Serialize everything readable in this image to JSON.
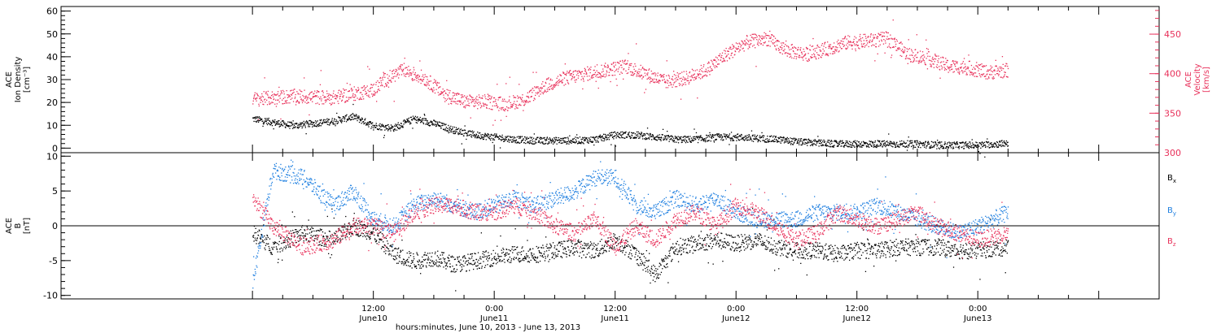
{
  "chart_data": [
    {
      "type": "scatter",
      "x_axis": {
        "label": "hours:minutes, June 10, 2013 - June 13, 2013",
        "range_hours": [
          -19,
          90
        ],
        "ticks": [
          {
            "h": 12,
            "time": "12:00",
            "day": "June10"
          },
          {
            "h": 24,
            "time": "0:00",
            "day": "June11"
          },
          {
            "h": 36,
            "time": "12:00",
            "day": "June11"
          },
          {
            "h": 48,
            "time": "0:00",
            "day": "June12"
          },
          {
            "h": 60,
            "time": "12:00",
            "day": "June12"
          },
          {
            "h": 72,
            "time": "0:00",
            "day": "June13"
          }
        ]
      },
      "left_axis": {
        "label_lines": [
          "ACE",
          "Ion Density",
          "[cm⁻³]"
        ],
        "range": [
          -2,
          62
        ],
        "ticks": [
          0,
          10,
          20,
          30,
          40,
          50,
          60
        ],
        "color": "#000000"
      },
      "right_axis": {
        "label_lines": [
          "ACE",
          "Velocity",
          "[km/s]"
        ],
        "range": [
          300,
          485
        ],
        "ticks": [
          300,
          350,
          400,
          450
        ],
        "color": "#e8305a"
      },
      "series": [
        {
          "key": "density",
          "axis": "left",
          "color": "#000000",
          "x": [
            0,
            4,
            8,
            10,
            12,
            14,
            16,
            18,
            20,
            22,
            24,
            26,
            28,
            30,
            32,
            34,
            36,
            38,
            40,
            42,
            44,
            46,
            48,
            50,
            52,
            54,
            56,
            58,
            60,
            62,
            64,
            66,
            68,
            70,
            72,
            74,
            75
          ],
          "y": [
            13,
            10,
            12,
            14,
            10,
            9,
            13,
            11,
            8,
            6,
            5,
            4,
            3.5,
            3.5,
            3.5,
            4,
            6,
            6,
            5,
            4,
            4,
            5,
            5,
            4.5,
            4,
            3,
            2.5,
            2,
            2,
            2,
            2,
            2,
            1.5,
            1.5,
            1.5,
            2,
            2.5
          ]
        },
        {
          "key": "velocity",
          "axis": "right",
          "color": "#e8305a",
          "x": [
            0,
            4,
            8,
            10,
            12,
            13,
            15,
            17,
            19,
            21,
            23,
            25,
            27,
            29,
            31,
            33,
            35,
            37,
            39,
            41,
            43,
            45,
            47,
            49,
            51,
            53,
            55,
            57,
            59,
            61,
            63,
            65,
            67,
            69,
            71,
            73,
            75
          ],
          "y": [
            368,
            372,
            370,
            375,
            380,
            392,
            405,
            395,
            375,
            365,
            365,
            362,
            368,
            385,
            395,
            400,
            405,
            410,
            400,
            390,
            395,
            405,
            425,
            440,
            445,
            430,
            425,
            432,
            440,
            442,
            445,
            425,
            420,
            410,
            408,
            402,
            405
          ]
        }
      ]
    },
    {
      "type": "scatter",
      "x_axis": {
        "range_hours": [
          -19,
          90
        ]
      },
      "left_axis": {
        "label_lines": [
          "ACE",
          "B",
          "[nT]"
        ],
        "range": [
          -10.5,
          10.5
        ],
        "ticks": [
          -10,
          -5,
          0,
          5,
          10
        ]
      },
      "zero_line": true,
      "series": [
        {
          "key": "bx",
          "name": "Bx",
          "color": "#000000",
          "x": [
            0,
            2,
            5,
            8,
            10,
            12,
            14,
            16,
            18,
            20,
            22,
            24,
            26,
            28,
            30,
            32,
            34,
            36,
            38,
            40,
            42,
            44,
            46,
            48,
            50,
            52,
            54,
            56,
            58,
            60,
            62,
            64,
            66,
            68,
            70,
            72,
            75
          ],
          "y": [
            -1,
            -3,
            -1,
            -2,
            0,
            -1,
            -4,
            -5,
            -4.5,
            -5.5,
            -5,
            -4.5,
            -4,
            -4,
            -3.5,
            -3,
            -3.5,
            -2,
            -4,
            -7,
            -3,
            -2.5,
            -2,
            -2.5,
            -2,
            -3,
            -3.5,
            -3.5,
            -4,
            -3.5,
            -3.5,
            -3,
            -3,
            -3,
            -3.5,
            -3.5,
            -3
          ]
        },
        {
          "key": "by",
          "name": "By",
          "color": "#1e7fe0",
          "x": [
            0,
            2,
            5,
            8,
            10,
            12,
            14,
            16,
            18,
            20,
            22,
            24,
            26,
            28,
            30,
            32,
            34,
            36,
            38,
            40,
            42,
            44,
            46,
            48,
            50,
            52,
            54,
            56,
            58,
            60,
            62,
            64,
            66,
            68,
            70,
            72,
            75
          ],
          "y": [
            -8,
            8,
            7,
            3,
            5,
            1,
            0,
            3,
            4,
            3,
            2,
            3,
            4,
            3,
            4,
            5,
            7,
            7,
            3,
            2,
            4,
            3,
            4,
            2,
            1,
            1,
            1,
            2,
            2,
            2,
            3,
            2,
            1,
            0,
            -1,
            0,
            2
          ]
        },
        {
          "key": "bz",
          "name": "Bz",
          "color": "#e8305a",
          "x": [
            0,
            2,
            5,
            8,
            10,
            12,
            14,
            16,
            18,
            20,
            22,
            24,
            26,
            28,
            30,
            32,
            34,
            36,
            38,
            40,
            42,
            44,
            46,
            48,
            50,
            52,
            54,
            56,
            58,
            60,
            62,
            64,
            66,
            68,
            70,
            72,
            75
          ],
          "y": [
            4,
            0,
            -3,
            -2,
            0,
            0,
            -1,
            2,
            3,
            3,
            2,
            2,
            3,
            2,
            0,
            -1,
            1,
            -3,
            0,
            -2,
            1,
            2,
            0,
            3,
            2,
            0,
            -2,
            -1,
            2,
            1,
            0,
            1,
            2,
            0,
            -1,
            -2,
            -1
          ]
        }
      ],
      "legend": {
        "placement": "right",
        "entries": [
          {
            "series": "bx",
            "text": "B",
            "sub": "x",
            "color": "#000000"
          },
          {
            "series": "by",
            "text": "B",
            "sub": "y",
            "color": "#1e7fe0"
          },
          {
            "series": "bz",
            "text": "B",
            "sub": "z",
            "color": "#e8305a"
          }
        ]
      }
    }
  ]
}
